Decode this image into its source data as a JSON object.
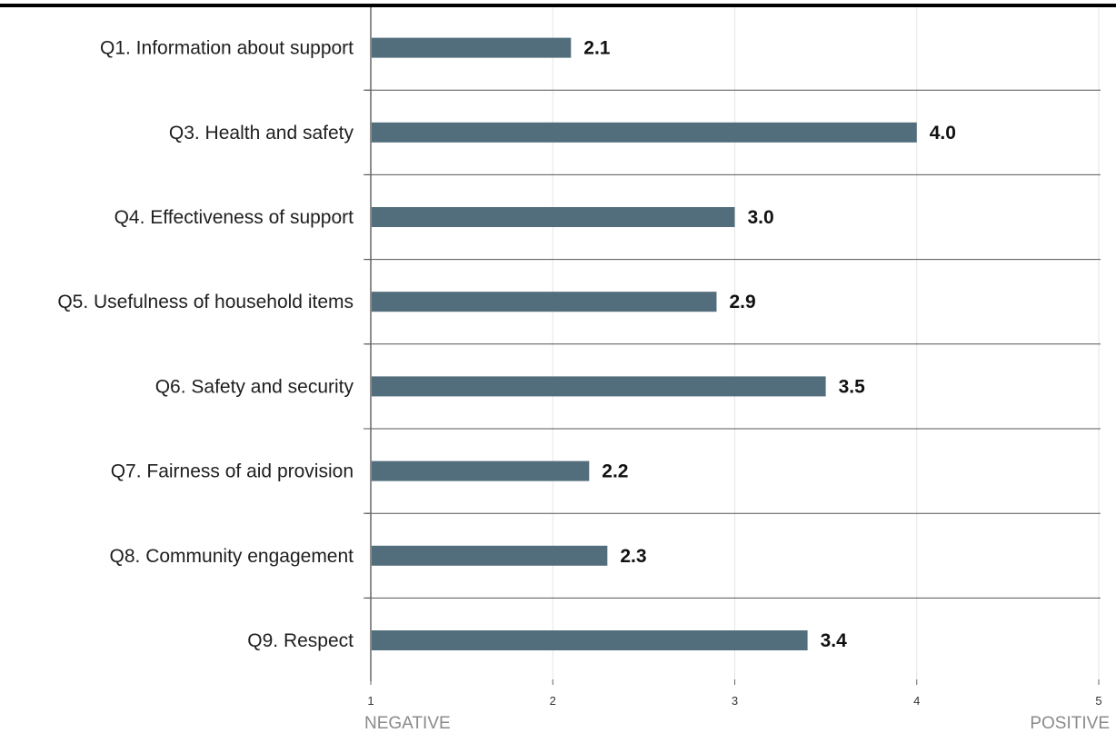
{
  "chart_data": {
    "type": "bar",
    "orientation": "horizontal",
    "categories": [
      "Q1. Information about support",
      "Q3. Health and safety",
      "Q4. Effectiveness of support",
      "Q5. Usefulness of household items",
      "Q6. Safety and security",
      "Q7. Fairness of aid provision",
      "Q8. Community engagement",
      "Q9. Respect"
    ],
    "values": [
      2.1,
      4.0,
      3.0,
      2.9,
      3.5,
      2.2,
      2.3,
      3.4
    ],
    "value_labels": [
      "2.1",
      "4.0",
      "3.0",
      "2.9",
      "3.5",
      "2.2",
      "2.3",
      "3.4"
    ],
    "xlim": [
      1,
      5
    ],
    "x_ticks": [
      "1",
      "2",
      "3",
      "4",
      "5"
    ],
    "x_min_label": "NEGATIVE",
    "x_max_label": "POSITIVE",
    "grid": true,
    "bar_color": "#526d7b"
  }
}
